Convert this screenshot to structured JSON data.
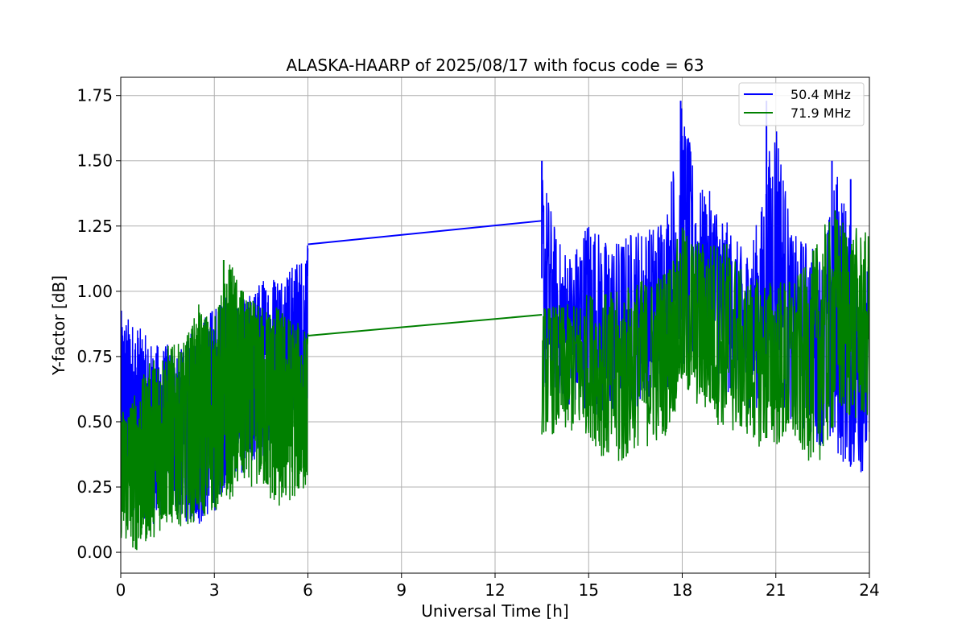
{
  "chart_data": {
    "type": "line",
    "title": "ALASKA-HAARP of 2025/08/17 with focus code = 63",
    "xlabel": "Universal Time [h]",
    "ylabel": "Y-factor [dB]",
    "xlim": [
      0,
      24
    ],
    "ylim": [
      -0.08,
      1.82
    ],
    "xticks": [
      0,
      3,
      6,
      9,
      12,
      15,
      18,
      21,
      24
    ],
    "xtick_labels": [
      "0",
      "3",
      "6",
      "9",
      "12",
      "15",
      "18",
      "21",
      "24"
    ],
    "yticks": [
      0.0,
      0.25,
      0.5,
      0.75,
      1.0,
      1.25,
      1.5,
      1.75
    ],
    "ytick_labels": [
      "0.00",
      "0.25",
      "0.50",
      "0.75",
      "1.00",
      "1.25",
      "1.50",
      "1.75"
    ],
    "grid": true,
    "legend_position": "top-right",
    "data_gap_hours": [
      6.0,
      13.5
    ],
    "series": [
      {
        "name": "50.4 MHz",
        "color": "#0000ff",
        "envelope": {
          "x": [
            0.0,
            0.5,
            1.0,
            1.5,
            2.0,
            2.5,
            3.0,
            3.5,
            4.0,
            4.5,
            5.0,
            5.5,
            6.0,
            13.5,
            14.0,
            14.5,
            15.0,
            15.5,
            16.0,
            16.5,
            17.0,
            17.5,
            18.0,
            18.5,
            19.0,
            19.5,
            20.0,
            20.5,
            21.0,
            21.5,
            22.0,
            22.5,
            23.0,
            23.5,
            24.0
          ],
          "upper": [
            0.93,
            0.88,
            0.8,
            0.8,
            0.78,
            0.9,
            0.95,
            1.0,
            0.97,
            1.05,
            1.08,
            1.1,
            1.18,
            1.5,
            1.2,
            1.15,
            1.3,
            1.2,
            1.2,
            1.25,
            1.25,
            1.33,
            1.73,
            1.4,
            1.38,
            1.25,
            1.15,
            1.3,
            1.73,
            1.22,
            1.2,
            1.15,
            1.5,
            1.18,
            1.1
          ],
          "lower": [
            0.2,
            0.15,
            0.1,
            0.15,
            0.12,
            0.1,
            0.15,
            0.3,
            0.3,
            0.35,
            0.4,
            0.45,
            0.45,
            0.6,
            0.6,
            0.55,
            0.55,
            0.5,
            0.55,
            0.55,
            0.6,
            0.6,
            0.7,
            0.7,
            0.65,
            0.6,
            0.55,
            0.55,
            0.6,
            0.5,
            0.45,
            0.4,
            0.35,
            0.3,
            0.3
          ]
        },
        "connector": {
          "x": [
            6.0,
            13.5
          ],
          "y": [
            1.18,
            1.27
          ]
        },
        "spikes": [
          {
            "x": 13.5,
            "y": 1.5
          },
          {
            "x": 17.95,
            "y": 1.73
          },
          {
            "x": 20.7,
            "y": 1.73
          },
          {
            "x": 22.8,
            "y": 1.5
          },
          {
            "x": 23.4,
            "y": 1.43
          }
        ]
      },
      {
        "name": "71.9 MHz",
        "color": "#008000",
        "envelope": {
          "x": [
            0.0,
            0.5,
            1.0,
            1.5,
            2.0,
            2.5,
            3.0,
            3.5,
            4.0,
            4.5,
            5.0,
            5.5,
            6.0,
            13.5,
            14.0,
            14.5,
            15.0,
            15.5,
            16.0,
            16.5,
            17.0,
            17.5,
            18.0,
            18.5,
            19.0,
            19.5,
            20.0,
            20.5,
            21.0,
            21.5,
            22.0,
            22.5,
            23.0,
            23.5,
            24.0
          ],
          "upper": [
            0.55,
            0.62,
            0.75,
            0.8,
            0.8,
            0.95,
            0.9,
            1.12,
            0.98,
            0.95,
            0.95,
            0.9,
            0.85,
            0.95,
            0.95,
            0.95,
            1.0,
            1.0,
            1.0,
            1.05,
            1.05,
            1.1,
            1.25,
            1.2,
            1.2,
            1.2,
            1.05,
            1.05,
            1.05,
            1.05,
            1.1,
            1.25,
            1.3,
            1.25,
            1.22
          ],
          "lower": [
            0.05,
            0.0,
            0.05,
            0.1,
            0.1,
            0.12,
            0.15,
            0.2,
            0.25,
            0.25,
            0.15,
            0.2,
            0.25,
            0.45,
            0.45,
            0.45,
            0.45,
            0.35,
            0.3,
            0.4,
            0.4,
            0.45,
            0.6,
            0.55,
            0.5,
            0.45,
            0.45,
            0.4,
            0.4,
            0.4,
            0.35,
            0.35,
            0.5,
            0.5,
            0.5
          ]
        },
        "connector": {
          "x": [
            6.0,
            13.5
          ],
          "y": [
            0.83,
            0.91
          ]
        },
        "spikes": [
          {
            "x": 3.3,
            "y": 1.12
          },
          {
            "x": 22.9,
            "y": 1.31
          }
        ]
      }
    ]
  }
}
